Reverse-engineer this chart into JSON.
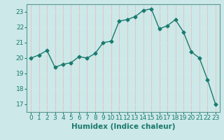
{
  "x": [
    0,
    1,
    2,
    3,
    4,
    5,
    6,
    7,
    8,
    9,
    10,
    11,
    12,
    13,
    14,
    15,
    16,
    17,
    18,
    19,
    20,
    21,
    22,
    23
  ],
  "y": [
    20.0,
    20.2,
    20.5,
    19.4,
    19.6,
    19.7,
    20.1,
    20.0,
    20.3,
    21.0,
    21.1,
    22.4,
    22.5,
    22.7,
    23.1,
    23.2,
    21.9,
    22.1,
    22.5,
    21.7,
    20.4,
    20.0,
    18.6,
    17.0
  ],
  "line_color": "#1a7a6e",
  "marker": "D",
  "markersize": 2.5,
  "linewidth": 1.0,
  "bg_color": "#cce8e8",
  "grid_color": "#e8b8b8",
  "grid_color2": "#d4e8e8",
  "xlabel": "Humidex (Indice chaleur)",
  "ylabel": "",
  "xlim": [
    -0.5,
    23.5
  ],
  "ylim": [
    16.5,
    23.5
  ],
  "yticks": [
    17,
    18,
    19,
    20,
    21,
    22,
    23
  ],
  "xticks": [
    0,
    1,
    2,
    3,
    4,
    5,
    6,
    7,
    8,
    9,
    10,
    11,
    12,
    13,
    14,
    15,
    16,
    17,
    18,
    19,
    20,
    21,
    22,
    23
  ],
  "xlabel_fontsize": 7.5,
  "tick_fontsize": 6.5,
  "tick_color": "#1a7a6e",
  "label_color": "#1a7a6e",
  "spine_color": "#5a9a90"
}
